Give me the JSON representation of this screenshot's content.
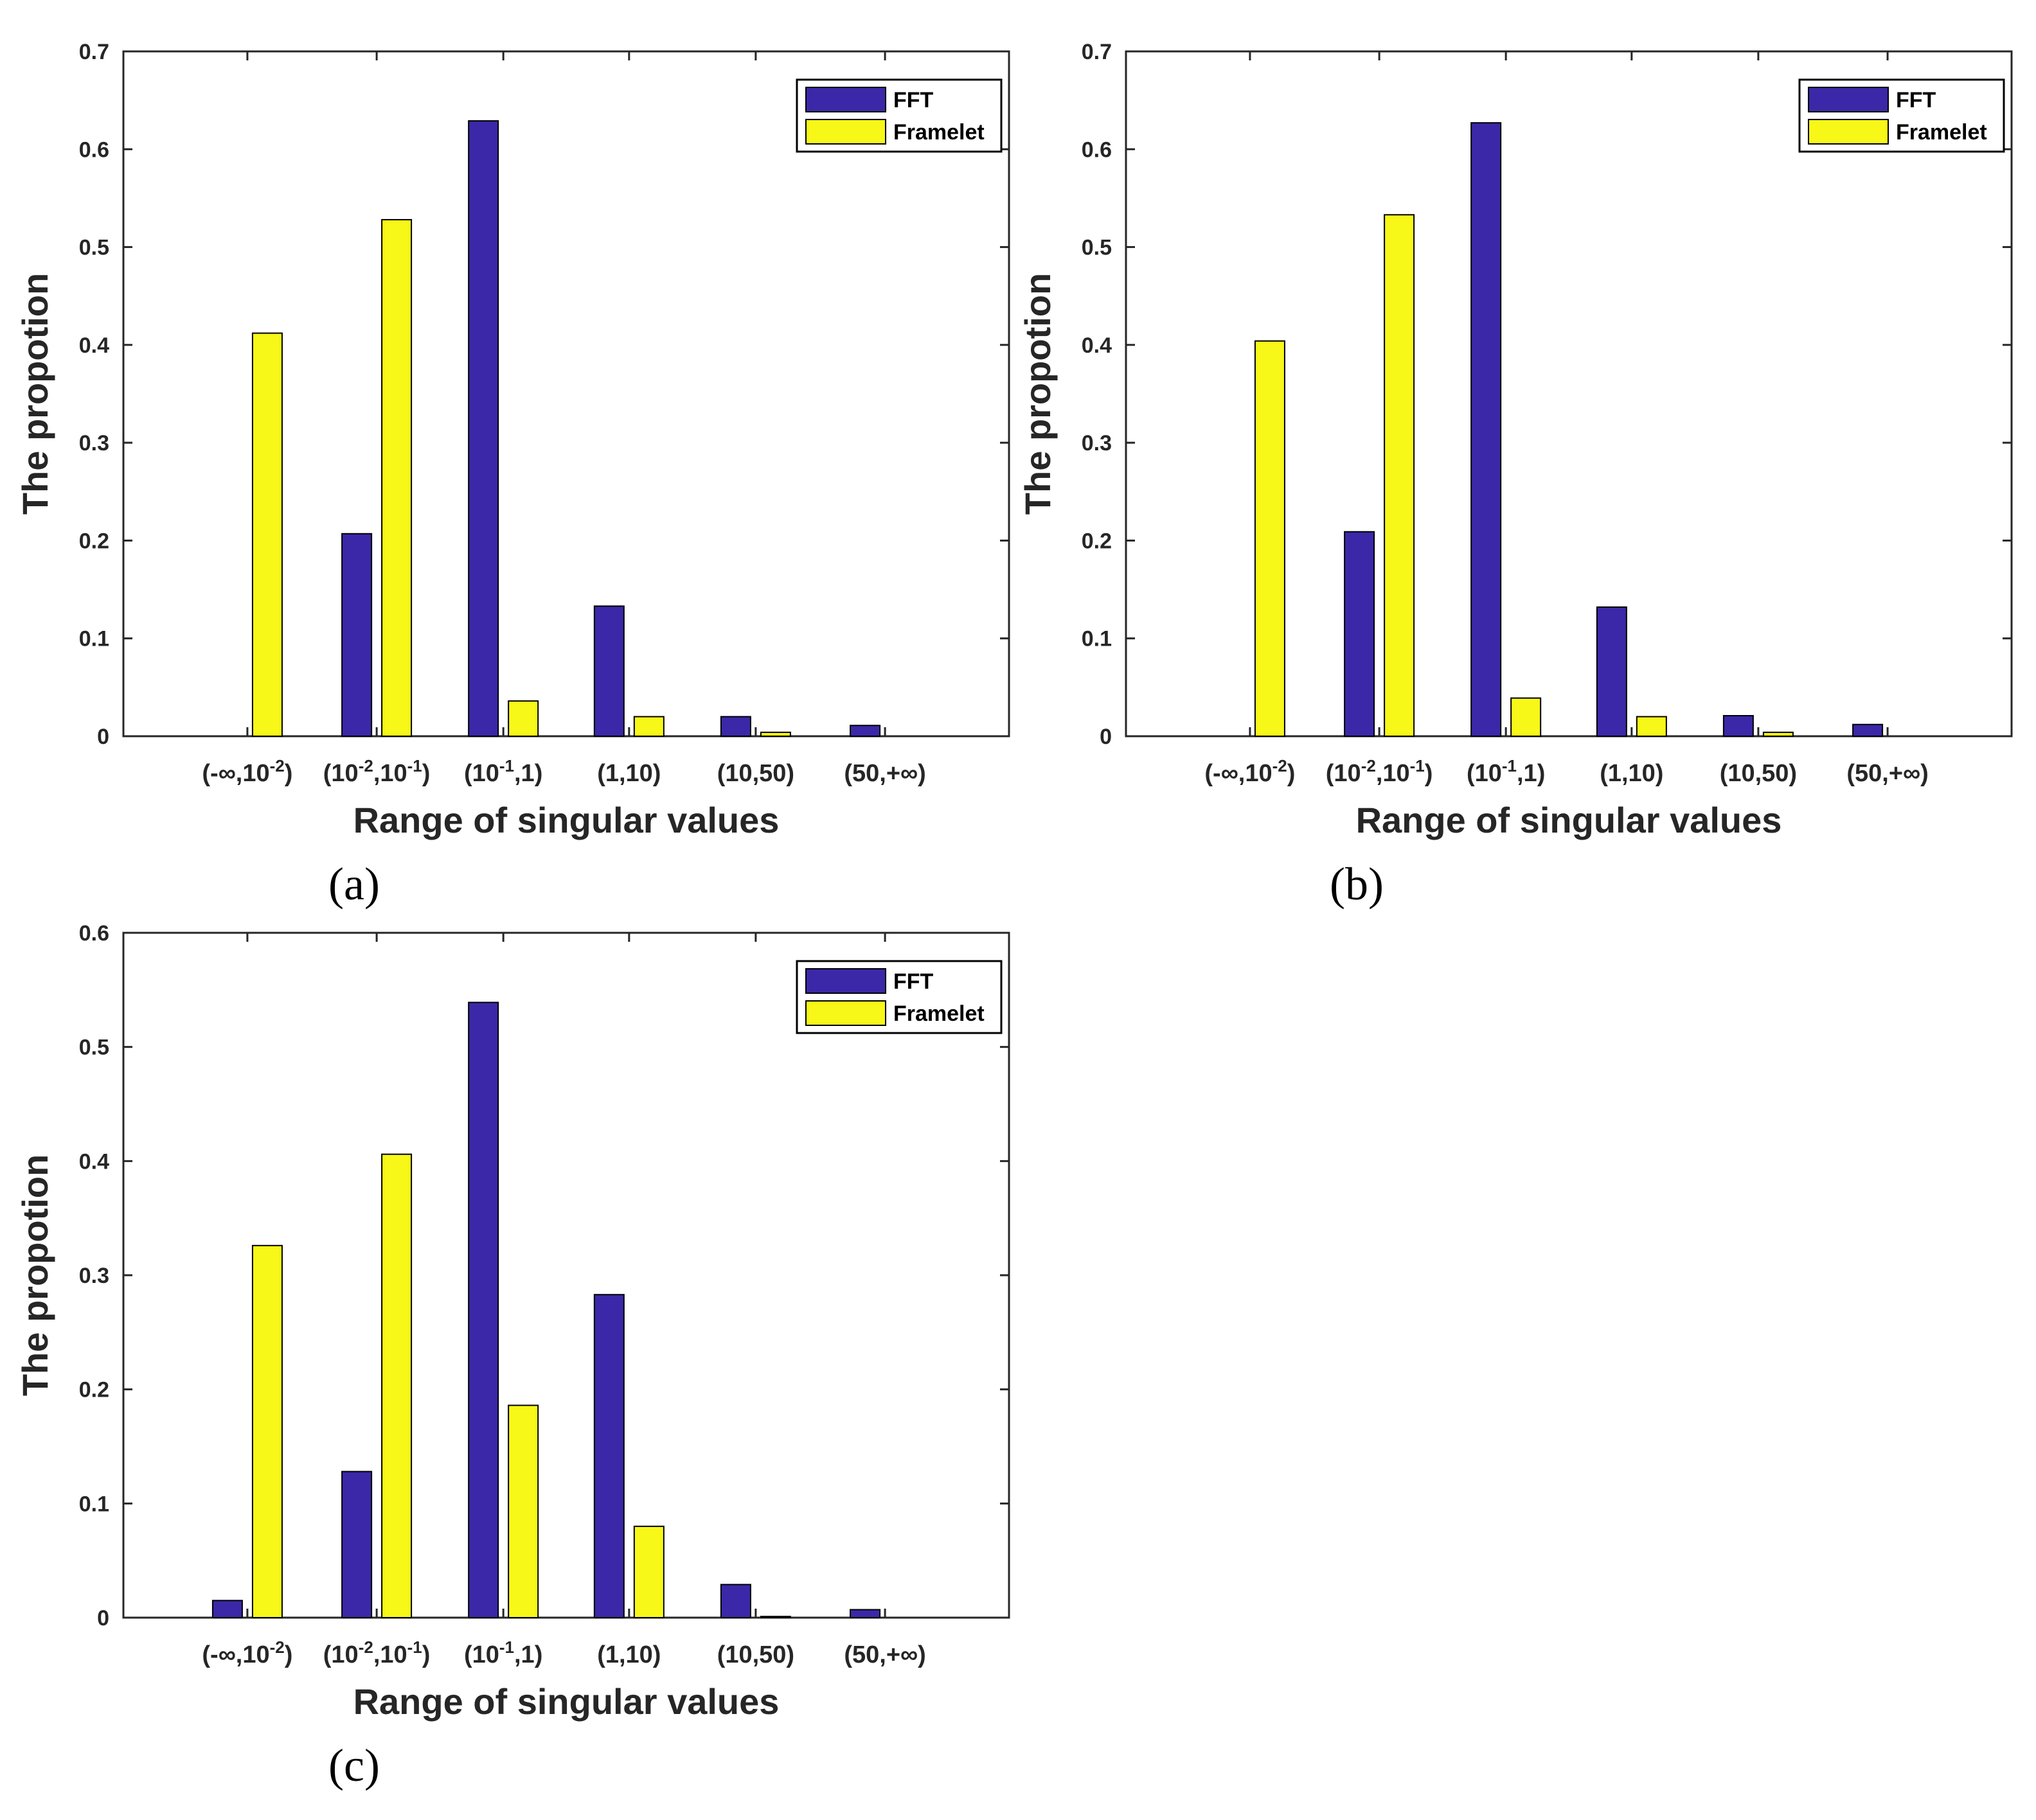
{
  "colors": {
    "fft": "#3a28a8",
    "framelet": "#f7f718",
    "axis": "#262626",
    "background": "#ffffff"
  },
  "chart_data": [
    {
      "type": "bar",
      "panel_label": "(a)",
      "xlabel": "Range of singular values",
      "ylabel": "The propotion",
      "ylim": [
        0,
        0.7
      ],
      "yticks": [
        "0",
        "0.1",
        "0.2",
        "0.3",
        "0.4",
        "0.5",
        "0.6",
        "0.7"
      ],
      "categories": [
        {
          "base": "(-∞,10",
          "sup": "-2",
          "tail": ")"
        },
        {
          "base": "(10",
          "sup": "-2",
          "mid": ",10",
          "sup2": "-1",
          "tail": ")"
        },
        {
          "base": "(10",
          "sup": "-1",
          "tail": ",1)"
        },
        {
          "base": "(1,10)"
        },
        {
          "base": "(10,50)"
        },
        {
          "base": "(50,+∞)"
        }
      ],
      "legend": {
        "placement": "top-right",
        "entries": [
          "FFT",
          "Framelet"
        ]
      },
      "series": [
        {
          "name": "FFT",
          "values": [
            0.0,
            0.207,
            0.629,
            0.133,
            0.02,
            0.011
          ]
        },
        {
          "name": "Framelet",
          "values": [
            0.412,
            0.528,
            0.036,
            0.02,
            0.004,
            0.0
          ]
        }
      ]
    },
    {
      "type": "bar",
      "panel_label": "(b)",
      "xlabel": "Range of singular values",
      "ylabel": "The propotion",
      "ylim": [
        0,
        0.7
      ],
      "yticks": [
        "0",
        "0.1",
        "0.2",
        "0.3",
        "0.4",
        "0.5",
        "0.6",
        "0.7"
      ],
      "categories": [
        {
          "base": "(-∞,10",
          "sup": "-2",
          "tail": ")"
        },
        {
          "base": "(10",
          "sup": "-2",
          "mid": ",10",
          "sup2": "-1",
          "tail": ")"
        },
        {
          "base": "(10",
          "sup": "-1",
          "tail": ",1)"
        },
        {
          "base": "(1,10)"
        },
        {
          "base": "(10,50)"
        },
        {
          "base": "(50,+∞)"
        }
      ],
      "legend": {
        "placement": "top-right",
        "entries": [
          "FFT",
          "Framelet"
        ]
      },
      "series": [
        {
          "name": "FFT",
          "values": [
            0.0,
            0.209,
            0.627,
            0.132,
            0.021,
            0.012
          ]
        },
        {
          "name": "Framelet",
          "values": [
            0.404,
            0.533,
            0.039,
            0.02,
            0.004,
            0.0
          ]
        }
      ]
    },
    {
      "type": "bar",
      "panel_label": "(c)",
      "xlabel": "Range of singular values",
      "ylabel": "The propotion",
      "ylim": [
        0,
        0.6
      ],
      "yticks": [
        "0",
        "0.1",
        "0.2",
        "0.3",
        "0.4",
        "0.5",
        "0.6"
      ],
      "categories": [
        {
          "base": "(-∞,10",
          "sup": "-2",
          "tail": ")"
        },
        {
          "base": "(10",
          "sup": "-2",
          "mid": ",10",
          "sup2": "-1",
          "tail": ")"
        },
        {
          "base": "(10",
          "sup": "-1",
          "tail": ",1)"
        },
        {
          "base": "(1,10)"
        },
        {
          "base": "(10,50)"
        },
        {
          "base": "(50,+∞)"
        }
      ],
      "legend": {
        "placement": "top-right",
        "entries": [
          "FFT",
          "Framelet"
        ]
      },
      "series": [
        {
          "name": "FFT",
          "values": [
            0.015,
            0.128,
            0.539,
            0.283,
            0.029,
            0.007
          ]
        },
        {
          "name": "Framelet",
          "values": [
            0.326,
            0.406,
            0.186,
            0.08,
            0.001,
            0.0
          ]
        }
      ]
    }
  ]
}
